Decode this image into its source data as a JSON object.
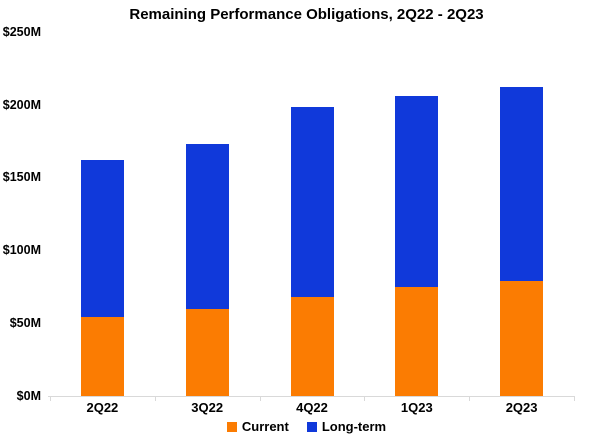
{
  "chart_data": {
    "type": "bar",
    "stacked": true,
    "title": "Remaining Performance Obligations, 2Q22 - 2Q23",
    "categories": [
      "2Q22",
      "3Q22",
      "4Q22",
      "1Q23",
      "2Q23"
    ],
    "series": [
      {
        "name": "Current",
        "color": "#FB7C02",
        "values": [
          54,
          60,
          68,
          75,
          79
        ]
      },
      {
        "name": "Long-term",
        "color": "#1039DA",
        "values": [
          108,
          113,
          130,
          131,
          133
        ]
      }
    ],
    "stack_totals": [
      162,
      173,
      198,
      206,
      212
    ],
    "y_ticks": [
      "$0M",
      "$50M",
      "$100M",
      "$150M",
      "$200M",
      "$250M"
    ],
    "ylim": [
      0,
      250
    ],
    "y_step": 50,
    "xlabel": "",
    "ylabel": "",
    "grid": false,
    "legend_position": "bottom",
    "axis_color": "#D9D9D9",
    "text_color": "#000000",
    "background_color": "#FFFFFF"
  }
}
